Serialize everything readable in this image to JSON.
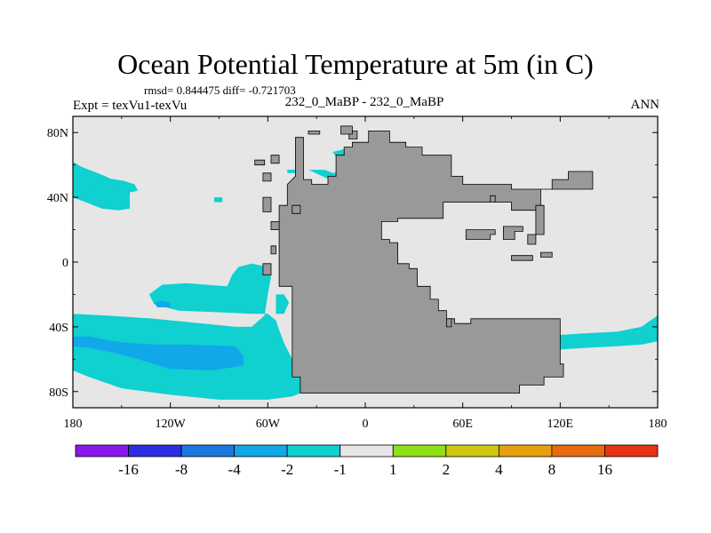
{
  "chart_data": {
    "type": "heatmap",
    "title": "Ocean Potential Temperature at 5m (in C)",
    "stats_text": "rmsd= 0.844475 diff= -0.721703",
    "left_label": "Expt = texVu1-texVu",
    "center_label": "232_0_MaBP - 232_0_MaBP",
    "right_label": "ANN",
    "x_range": [
      -180,
      180
    ],
    "y_range": [
      -90,
      90
    ],
    "x_ticks": [
      {
        "value": -180,
        "label": "180"
      },
      {
        "value": -120,
        "label": "120W"
      },
      {
        "value": -60,
        "label": "60W"
      },
      {
        "value": 0,
        "label": "0"
      },
      {
        "value": 60,
        "label": "60E"
      },
      {
        "value": 120,
        "label": "120E"
      },
      {
        "value": 180,
        "label": "180"
      }
    ],
    "y_ticks": [
      {
        "value": 80,
        "label": "80N"
      },
      {
        "value": 40,
        "label": "40N"
      },
      {
        "value": 0,
        "label": "0"
      },
      {
        "value": -40,
        "label": "40S"
      },
      {
        "value": -80,
        "label": "80S"
      }
    ],
    "colorbar": {
      "colors": [
        "#8a18e8",
        "#2c2ce0",
        "#1c78e0",
        "#10a8e8",
        "#10d0d0",
        "#e6e6e6",
        "#8ee018",
        "#d0c810",
        "#e8a010",
        "#e86a10",
        "#e83210"
      ],
      "labels": [
        "-16",
        "-8",
        "-4",
        "-2",
        "-1",
        "1",
        "2",
        "4",
        "8",
        "16"
      ]
    },
    "background_color": "#e6e6e6",
    "land_color": "#999999",
    "land": [
      [
        [
          -43,
          77
        ],
        [
          -43,
          53
        ],
        [
          -48,
          48
        ],
        [
          -48,
          35
        ],
        [
          -53,
          35
        ],
        [
          -53,
          -15
        ],
        [
          -45,
          -15
        ],
        [
          -45,
          -71
        ],
        [
          -40,
          -71
        ],
        [
          -40,
          -81
        ],
        [
          95,
          -81
        ],
        [
          95,
          -76
        ],
        [
          110,
          -76
        ],
        [
          110,
          -71
        ],
        [
          122,
          -71
        ],
        [
          122,
          -63
        ],
        [
          120,
          -63
        ],
        [
          120,
          -35
        ],
        [
          65,
          -35
        ],
        [
          65,
          -38
        ],
        [
          55,
          -38
        ],
        [
          55,
          -35
        ],
        [
          50,
          -35
        ],
        [
          50,
          -30
        ],
        [
          45,
          -30
        ],
        [
          45,
          -23
        ],
        [
          40,
          -23
        ],
        [
          40,
          -15
        ],
        [
          32,
          -15
        ],
        [
          32,
          -4
        ],
        [
          27,
          -4
        ],
        [
          27,
          -1
        ],
        [
          20,
          -1
        ],
        [
          20,
          12
        ],
        [
          15,
          12
        ],
        [
          15,
          14
        ],
        [
          10,
          14
        ],
        [
          10,
          25
        ],
        [
          20,
          25
        ],
        [
          20,
          27
        ],
        [
          48,
          27
        ],
        [
          48,
          37
        ],
        [
          90,
          37
        ],
        [
          90,
          32
        ],
        [
          108,
          32
        ],
        [
          108,
          45
        ],
        [
          115,
          45
        ],
        [
          115,
          51
        ],
        [
          125,
          51
        ],
        [
          125,
          56
        ],
        [
          140,
          56
        ],
        [
          140,
          45
        ],
        [
          90,
          45
        ],
        [
          90,
          48
        ],
        [
          60,
          48
        ],
        [
          60,
          53
        ],
        [
          53,
          53
        ],
        [
          53,
          66
        ],
        [
          35,
          66
        ],
        [
          35,
          71
        ],
        [
          25,
          71
        ],
        [
          25,
          74
        ],
        [
          15,
          74
        ],
        [
          15,
          81
        ],
        [
          2,
          81
        ],
        [
          2,
          74
        ],
        [
          -8,
          74
        ],
        [
          -8,
          71
        ],
        [
          -13,
          71
        ],
        [
          -13,
          66
        ],
        [
          -18,
          66
        ],
        [
          -18,
          53
        ],
        [
          -23,
          53
        ],
        [
          -23,
          48
        ],
        [
          -33,
          48
        ],
        [
          -33,
          51
        ],
        [
          -38,
          51
        ],
        [
          -38,
          77
        ]
      ],
      [
        [
          -10,
          81
        ],
        [
          -10,
          76
        ],
        [
          -5,
          76
        ],
        [
          -5,
          81
        ]
      ],
      [
        [
          -15,
          84
        ],
        [
          -15,
          79
        ],
        [
          -8,
          79
        ],
        [
          -8,
          84
        ]
      ],
      [
        [
          -35,
          81
        ],
        [
          -35,
          79
        ],
        [
          -28,
          79
        ],
        [
          -28,
          81
        ]
      ],
      [
        [
          -68,
          63
        ],
        [
          -68,
          60
        ],
        [
          -62,
          60
        ],
        [
          -62,
          63
        ]
      ],
      [
        [
          -58,
          66
        ],
        [
          -58,
          61
        ],
        [
          -53,
          61
        ],
        [
          -53,
          66
        ]
      ],
      [
        [
          -63,
          55
        ],
        [
          -63,
          50
        ],
        [
          -58,
          50
        ],
        [
          -58,
          55
        ]
      ],
      [
        [
          -63,
          40
        ],
        [
          -63,
          31
        ],
        [
          -58,
          31
        ],
        [
          -58,
          40
        ]
      ],
      [
        [
          -58,
          10
        ],
        [
          -58,
          5
        ],
        [
          -55,
          5
        ],
        [
          -55,
          10
        ]
      ],
      [
        [
          -58,
          25
        ],
        [
          -58,
          20
        ],
        [
          -53,
          20
        ],
        [
          -53,
          25
        ]
      ],
      [
        [
          -45,
          35
        ],
        [
          -45,
          30
        ],
        [
          -40,
          30
        ],
        [
          -40,
          35
        ]
      ],
      [
        [
          -63,
          -1
        ],
        [
          -63,
          -8
        ],
        [
          -58,
          -8
        ],
        [
          -58,
          -1
        ]
      ],
      [
        [
          62,
          20
        ],
        [
          62,
          14
        ],
        [
          77,
          14
        ],
        [
          77,
          17
        ],
        [
          80,
          17
        ],
        [
          80,
          20
        ]
      ],
      [
        [
          85,
          22
        ],
        [
          85,
          14
        ],
        [
          92,
          14
        ],
        [
          92,
          19
        ],
        [
          97,
          19
        ],
        [
          97,
          22
        ]
      ],
      [
        [
          105,
          35
        ],
        [
          105,
          17
        ],
        [
          100,
          17
        ],
        [
          100,
          11
        ],
        [
          105,
          11
        ],
        [
          105,
          17
        ],
        [
          110,
          17
        ],
        [
          110,
          35
        ]
      ],
      [
        [
          90,
          4
        ],
        [
          90,
          1
        ],
        [
          103,
          1
        ],
        [
          103,
          4
        ]
      ],
      [
        [
          108,
          6
        ],
        [
          108,
          3
        ],
        [
          115,
          3
        ],
        [
          115,
          6
        ]
      ],
      [
        [
          77,
          41
        ],
        [
          77,
          37
        ],
        [
          80,
          37
        ],
        [
          80,
          41
        ]
      ],
      [
        [
          50,
          -35
        ],
        [
          50,
          -40
        ],
        [
          53,
          -40
        ],
        [
          53,
          -35
        ]
      ]
    ],
    "anomaly_regions": [
      {
        "bin": "-2 to -1",
        "polygon": [
          [
            -180,
            62
          ],
          [
            -175,
            59
          ],
          [
            -160,
            53
          ],
          [
            -150,
            48
          ],
          [
            -145,
            43
          ],
          [
            -145,
            33
          ],
          [
            -152,
            32
          ],
          [
            -162,
            33
          ],
          [
            -172,
            37
          ],
          [
            -180,
            40
          ]
        ]
      },
      {
        "bin": "-2 to -1",
        "polygon": [
          [
            -170,
            55
          ],
          [
            -160,
            52
          ],
          [
            -148,
            50
          ],
          [
            -142,
            48
          ],
          [
            -140,
            44
          ],
          [
            -145,
            43
          ],
          [
            -152,
            44
          ],
          [
            -162,
            46
          ],
          [
            -170,
            48
          ]
        ]
      },
      {
        "bin": "-2 to -1",
        "polygon": [
          [
            -93,
            40
          ],
          [
            -88,
            40
          ],
          [
            -88,
            37
          ],
          [
            -93,
            37
          ]
        ]
      },
      {
        "bin": "-2 to -1",
        "polygon": [
          [
            -35,
            57
          ],
          [
            -25,
            57
          ],
          [
            -20,
            55
          ],
          [
            -15,
            56
          ],
          [
            -10,
            60
          ],
          [
            -5,
            62
          ],
          [
            0,
            64
          ],
          [
            8,
            64
          ],
          [
            10,
            61
          ],
          [
            15,
            57
          ],
          [
            18,
            52
          ],
          [
            15,
            48
          ],
          [
            8,
            48
          ],
          [
            3,
            51
          ],
          [
            -2,
            55
          ],
          [
            -8,
            53
          ],
          [
            -15,
            52
          ],
          [
            -22,
            51
          ]
        ]
      },
      {
        "bin": "-2 to -1",
        "polygon": [
          [
            -20,
            68
          ],
          [
            -12,
            70
          ],
          [
            -8,
            71
          ],
          [
            -5,
            67
          ],
          [
            -10,
            65
          ],
          [
            -18,
            65
          ]
        ]
      },
      {
        "bin": "-2 to -1",
        "polygon": [
          [
            -48,
            57
          ],
          [
            -42,
            57
          ],
          [
            -42,
            55
          ],
          [
            -48,
            55
          ]
        ]
      },
      {
        "bin": "-2 to -1",
        "polygon": [
          [
            -180,
            -32
          ],
          [
            -160,
            -33
          ],
          [
            -130,
            -35
          ],
          [
            -100,
            -38
          ],
          [
            -80,
            -40
          ],
          [
            -70,
            -40
          ],
          [
            -62,
            -33
          ],
          [
            -60,
            -20
          ],
          [
            -58,
            -9
          ],
          [
            -60,
            -3
          ],
          [
            -70,
            -1
          ],
          [
            -78,
            -3
          ],
          [
            -82,
            -8
          ],
          [
            -85,
            -15
          ],
          [
            -98,
            -14
          ],
          [
            -110,
            -13
          ],
          [
            -125,
            -14
          ],
          [
            -133,
            -20
          ],
          [
            -130,
            -26
          ],
          [
            -115,
            -30
          ],
          [
            -90,
            -31
          ],
          [
            -70,
            -32
          ],
          [
            -60,
            -32
          ],
          [
            -55,
            -36
          ],
          [
            -53,
            -42
          ],
          [
            -50,
            -50
          ],
          [
            -45,
            -60
          ],
          [
            -45,
            -71
          ],
          [
            -40,
            -71
          ],
          [
            -40,
            -81
          ],
          [
            -45,
            -83
          ],
          [
            -60,
            -85
          ],
          [
            -90,
            -85
          ],
          [
            -120,
            -82
          ],
          [
            -150,
            -78
          ],
          [
            -170,
            -71
          ],
          [
            -180,
            -67
          ]
        ]
      },
      {
        "bin": "-2 to -1",
        "polygon": [
          [
            -55,
            -20
          ],
          [
            -50,
            -20
          ],
          [
            -47,
            -25
          ],
          [
            -50,
            -32
          ],
          [
            -55,
            -32
          ]
        ]
      },
      {
        "bin": "-2 to -1",
        "polygon": [
          [
            120,
            -45
          ],
          [
            135,
            -44
          ],
          [
            155,
            -43
          ],
          [
            170,
            -40
          ],
          [
            180,
            -33
          ],
          [
            180,
            -49
          ],
          [
            170,
            -51
          ],
          [
            155,
            -52
          ],
          [
            135,
            -53
          ],
          [
            120,
            -54
          ]
        ]
      },
      {
        "bin": "-2 to -1",
        "polygon": [
          [
            58,
            -38
          ],
          [
            63,
            -38
          ],
          [
            63,
            -41
          ],
          [
            58,
            -41
          ]
        ]
      },
      {
        "bin": "-4 to -2",
        "polygon": [
          [
            -180,
            -46
          ],
          [
            -170,
            -46
          ],
          [
            -155,
            -49
          ],
          [
            -145,
            -50
          ],
          [
            -130,
            -51
          ],
          [
            -110,
            -51
          ],
          [
            -80,
            -52
          ],
          [
            -75,
            -58
          ],
          [
            -75,
            -64
          ],
          [
            -95,
            -67
          ],
          [
            -120,
            -66
          ],
          [
            -140,
            -60
          ],
          [
            -155,
            -56
          ],
          [
            -170,
            -53
          ],
          [
            -180,
            -52
          ]
        ]
      },
      {
        "bin": "-4 to -2",
        "polygon": [
          [
            -130,
            -25
          ],
          [
            -125,
            -24
          ],
          [
            -120,
            -25
          ],
          [
            -120,
            -28
          ],
          [
            -128,
            -28
          ]
        ]
      }
    ]
  }
}
